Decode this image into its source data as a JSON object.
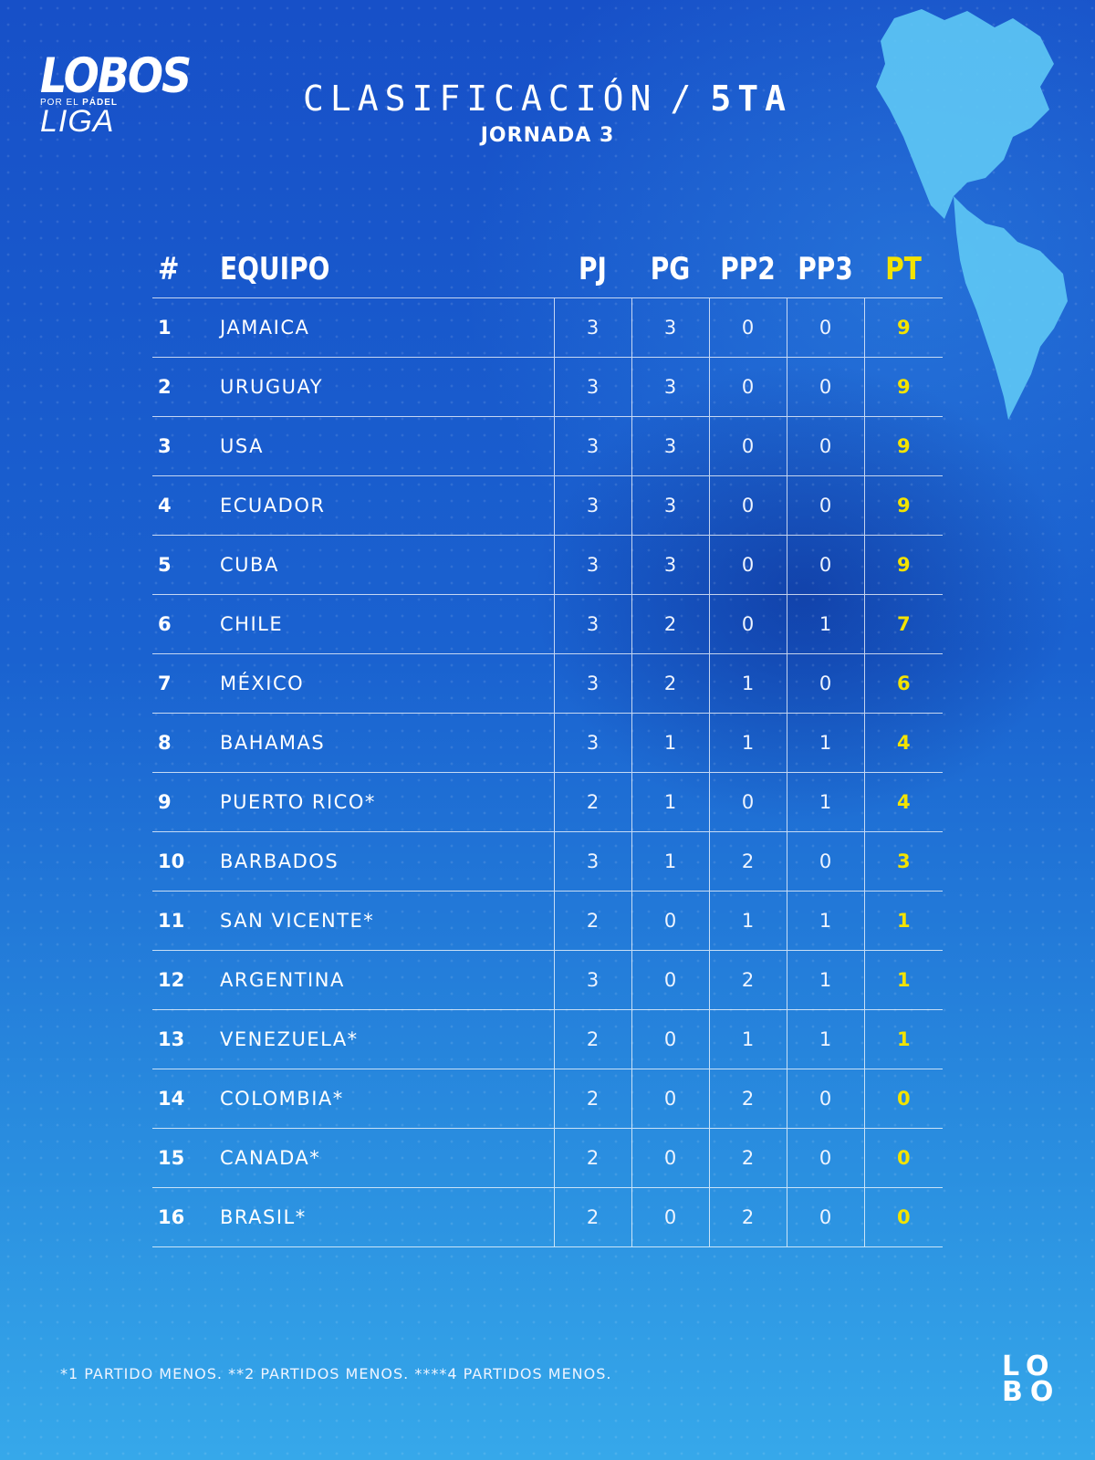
{
  "logo": {
    "main": "LOBOS",
    "sub_prefix": "POR EL",
    "sub_bold": "PÁDEL",
    "liga": "LIGA"
  },
  "header": {
    "title": "CLASIFICACIÓN",
    "separator": "/",
    "category": "5TA",
    "subtitle": "JORNADA 3"
  },
  "table": {
    "columns": {
      "pos": "#",
      "team": "EQUIPO",
      "pj": "PJ",
      "pg": "PG",
      "pp2": "PP2",
      "pp3": "PP3",
      "pt": "PT"
    },
    "rows": [
      {
        "pos": "1",
        "team": "JAMAICA",
        "pj": "3",
        "pg": "3",
        "pp2": "0",
        "pp3": "0",
        "pt": "9"
      },
      {
        "pos": "2",
        "team": "URUGUAY",
        "pj": "3",
        "pg": "3",
        "pp2": "0",
        "pp3": "0",
        "pt": "9"
      },
      {
        "pos": "3",
        "team": "USA",
        "pj": "3",
        "pg": "3",
        "pp2": "0",
        "pp3": "0",
        "pt": "9"
      },
      {
        "pos": "4",
        "team": "ECUADOR",
        "pj": "3",
        "pg": "3",
        "pp2": "0",
        "pp3": "0",
        "pt": "9"
      },
      {
        "pos": "5",
        "team": "CUBA",
        "pj": "3",
        "pg": "3",
        "pp2": "0",
        "pp3": "0",
        "pt": "9"
      },
      {
        "pos": "6",
        "team": "CHILE",
        "pj": "3",
        "pg": "2",
        "pp2": "0",
        "pp3": "1",
        "pt": "7"
      },
      {
        "pos": "7",
        "team": "MÉXICO",
        "pj": "3",
        "pg": "2",
        "pp2": "1",
        "pp3": "0",
        "pt": "6"
      },
      {
        "pos": "8",
        "team": "BAHAMAS",
        "pj": "3",
        "pg": "1",
        "pp2": "1",
        "pp3": "1",
        "pt": "4"
      },
      {
        "pos": "9",
        "team": "PUERTO RICO*",
        "pj": "2",
        "pg": "1",
        "pp2": "0",
        "pp3": "1",
        "pt": "4"
      },
      {
        "pos": "10",
        "team": "BARBADOS",
        "pj": "3",
        "pg": "1",
        "pp2": "2",
        "pp3": "0",
        "pt": "3"
      },
      {
        "pos": "11",
        "team": "SAN VICENTE*",
        "pj": "2",
        "pg": "0",
        "pp2": "1",
        "pp3": "1",
        "pt": "1"
      },
      {
        "pos": "12",
        "team": "ARGENTINA",
        "pj": "3",
        "pg": "0",
        "pp2": "2",
        "pp3": "1",
        "pt": "1"
      },
      {
        "pos": "13",
        "team": "VENEZUELA*",
        "pj": "2",
        "pg": "0",
        "pp2": "1",
        "pp3": "1",
        "pt": "1"
      },
      {
        "pos": "14",
        "team": "COLOMBIA*",
        "pj": "2",
        "pg": "0",
        "pp2": "2",
        "pp3": "0",
        "pt": "0"
      },
      {
        "pos": "15",
        "team": "CANADA*",
        "pj": "2",
        "pg": "0",
        "pp2": "2",
        "pp3": "0",
        "pt": "0"
      },
      {
        "pos": "16",
        "team": "BRASIL*",
        "pj": "2",
        "pg": "0",
        "pp2": "2",
        "pp3": "0",
        "pt": "0"
      }
    ]
  },
  "footnote": "*1 PARTIDO MENOS. **2 PARTIDOS MENOS. ****4 PARTIDOS MENOS.",
  "corner_logo": {
    "line1": "LO",
    "line2": "BO"
  },
  "colors": {
    "background": "#1a62d0",
    "points_accent": "#f3e300",
    "text": "#ffffff"
  },
  "icons": {
    "map": "americas-map-graphic"
  }
}
